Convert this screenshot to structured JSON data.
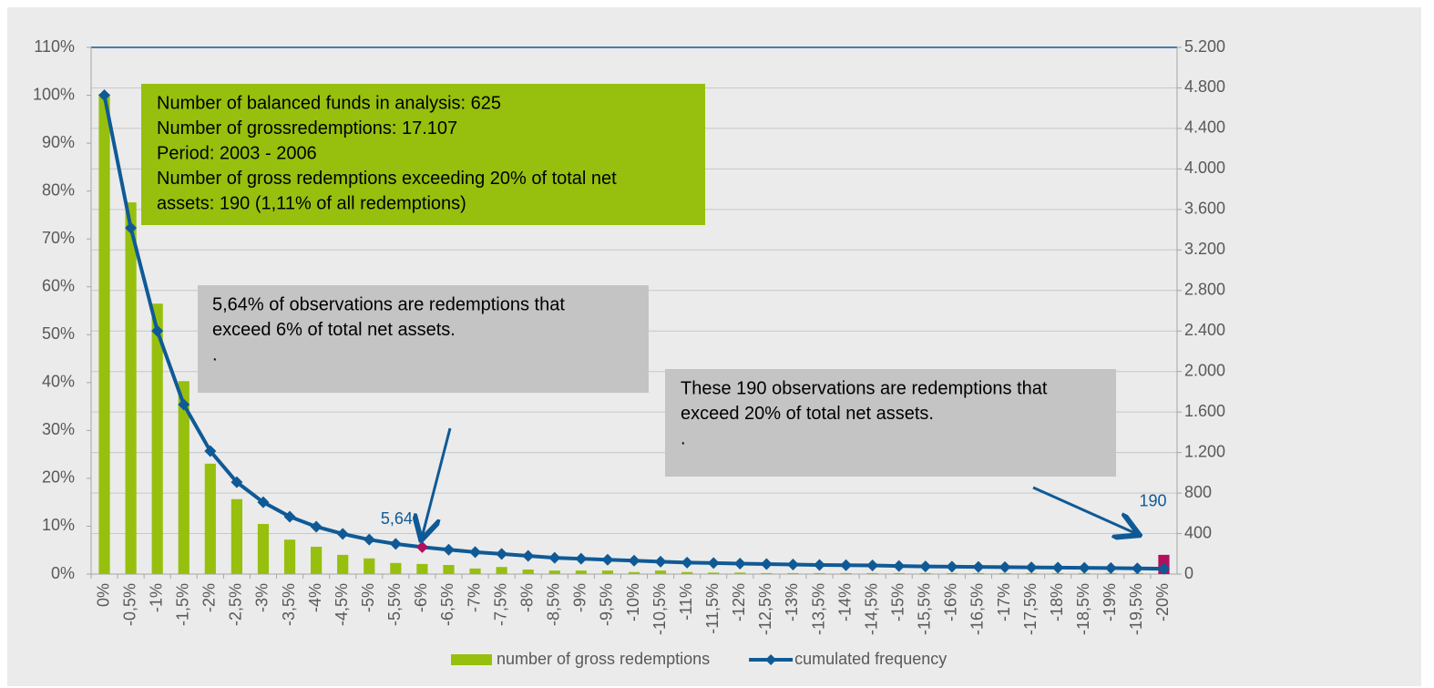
{
  "chart_data": {
    "type": "bar-line",
    "categories": [
      "0%",
      "-0,5%",
      "-1%",
      "-1,5%",
      "-2%",
      "-2,5%",
      "-3%",
      "-3,5%",
      "-4%",
      "-4,5%",
      "-5%",
      "-5,5%",
      "-6%",
      "-6,5%",
      "-7%",
      "-7,5%",
      "-8%",
      "-8,5%",
      "-9%",
      "-9,5%",
      "-10%",
      "-10,5%",
      "-11%",
      "-11,5%",
      "-12%",
      "-12,5%",
      "-13%",
      "-13,5%",
      "-14%",
      "-14,5%",
      "-15%",
      "-15,5%",
      "-16%",
      "-16,5%",
      "-17%",
      "-17,5%",
      "-18%",
      "-18,5%",
      "-19%",
      "-19,5%",
      "-20%"
    ],
    "series": [
      {
        "name": "number of gross redemptions",
        "type": "bar",
        "axis": "y2",
        "color": "#97c00e",
        "colors": [
          "#97c00e",
          "#97c00e",
          "#97c00e",
          "#97c00e",
          "#97c00e",
          "#97c00e",
          "#97c00e",
          "#97c00e",
          "#97c00e",
          "#97c00e",
          "#97c00e",
          "#97c00e",
          "#97c00e",
          "#97c00e",
          "#97c00e",
          "#97c00e",
          "#97c00e",
          "#97c00e",
          "#97c00e",
          "#97c00e",
          "#97c00e",
          "#97c00e",
          "#97c00e",
          "#97c00e",
          "#97c00e",
          "#97c00e",
          "#97c00e",
          "#97c00e",
          "#97c00e",
          "#97c00e",
          "#97c00e",
          "#97c00e",
          "#97c00e",
          "#97c00e",
          "#97c00e",
          "#97c00e",
          "#97c00e",
          "#97c00e",
          "#97c00e",
          "#97c00e",
          "#b0105e"
        ],
        "values": [
          4740,
          3670,
          2670,
          1905,
          1090,
          740,
          495,
          340,
          270,
          190,
          155,
          110,
          100,
          90,
          55,
          70,
          45,
          35,
          35,
          35,
          20,
          35,
          20,
          15,
          15,
          10,
          10,
          10,
          10,
          10,
          10,
          10,
          10,
          10,
          10,
          10,
          10,
          10,
          10,
          10,
          190
        ],
        "value_labels": [
          null,
          null,
          null,
          null,
          null,
          null,
          null,
          null,
          null,
          null,
          null,
          null,
          null,
          null,
          null,
          null,
          null,
          null,
          null,
          null,
          null,
          null,
          null,
          null,
          null,
          null,
          null,
          null,
          null,
          null,
          null,
          null,
          null,
          null,
          null,
          null,
          null,
          null,
          null,
          null,
          "190"
        ]
      },
      {
        "name": "cumulated frequency",
        "type": "line",
        "axis": "y",
        "color": "#0f5a96",
        "colors": [
          "#0f5a96",
          "#0f5a96",
          "#0f5a96",
          "#0f5a96",
          "#0f5a96",
          "#0f5a96",
          "#0f5a96",
          "#0f5a96",
          "#0f5a96",
          "#0f5a96",
          "#0f5a96",
          "#0f5a96",
          "#b0105e",
          "#0f5a96",
          "#0f5a96",
          "#0f5a96",
          "#0f5a96",
          "#0f5a96",
          "#0f5a96",
          "#0f5a96",
          "#0f5a96",
          "#0f5a96",
          "#0f5a96",
          "#0f5a96",
          "#0f5a96",
          "#0f5a96",
          "#0f5a96",
          "#0f5a96",
          "#0f5a96",
          "#0f5a96",
          "#0f5a96",
          "#0f5a96",
          "#0f5a96",
          "#0f5a96",
          "#0f5a96",
          "#0f5a96",
          "#0f5a96",
          "#0f5a96",
          "#0f5a96",
          "#0f5a96",
          "#0f5a96"
        ],
        "values": [
          100,
          72.3,
          50.8,
          35.4,
          25.7,
          19.2,
          15,
          12,
          9.9,
          8.4,
          7.2,
          6.3,
          5.64,
          5.1,
          4.6,
          4.2,
          3.8,
          3.4,
          3.2,
          3,
          2.8,
          2.6,
          2.4,
          2.3,
          2.2,
          2.1,
          2,
          1.9,
          1.85,
          1.8,
          1.7,
          1.6,
          1.55,
          1.5,
          1.45,
          1.4,
          1.35,
          1.3,
          1.25,
          1.2,
          1.11
        ],
        "value_labels": [
          null,
          null,
          null,
          null,
          null,
          null,
          null,
          null,
          null,
          null,
          null,
          null,
          "5,64",
          null,
          null,
          null,
          null,
          null,
          null,
          null,
          null,
          null,
          null,
          null,
          null,
          null,
          null,
          null,
          null,
          null,
          null,
          null,
          null,
          null,
          null,
          null,
          null,
          null,
          null,
          null,
          null
        ]
      }
    ],
    "ylim": [
      0,
      110
    ],
    "yticks": [
      {
        "value": 0,
        "label": "0%"
      },
      {
        "value": 10,
        "label": "10%"
      },
      {
        "value": 20,
        "label": "20%"
      },
      {
        "value": 30,
        "label": "30%"
      },
      {
        "value": 40,
        "label": "40%"
      },
      {
        "value": 50,
        "label": "50%"
      },
      {
        "value": 60,
        "label": "60%"
      },
      {
        "value": 70,
        "label": "70%"
      },
      {
        "value": 80,
        "label": "80%"
      },
      {
        "value": 90,
        "label": "90%"
      },
      {
        "value": 100,
        "label": "100%"
      },
      {
        "value": 110,
        "label": "110%"
      }
    ],
    "y2lim": [
      0,
      5200
    ],
    "y2ticks": [
      0,
      400,
      800,
      {
        "value": 1200,
        "label": "1.200"
      },
      {
        "value": 1600,
        "label": "1.600"
      },
      {
        "value": 2000,
        "label": "2.000"
      },
      {
        "value": 2400,
        "label": "2.400"
      },
      {
        "value": 2800,
        "label": "2.800"
      },
      {
        "value": 3200,
        "label": "3.200"
      },
      {
        "value": 3600,
        "label": "3.600"
      },
      {
        "value": 4000,
        "label": "4.000"
      },
      {
        "value": 4400,
        "label": "4.400"
      },
      {
        "value": 4800,
        "label": "4.800"
      },
      {
        "value": 5200,
        "label": "5.200"
      }
    ],
    "grid": "y2",
    "legend": "bottom",
    "annotations": [
      {
        "color": "#97c00e",
        "lines": [
          "Number of balanced funds in analysis: 625",
          "Number of grossredemptions: 17.107",
          "Period: 2003 - 2006",
          "Number of gross redemptions exceeding  20% of total net",
          "assets: 190 (1,11% of all redemptions)"
        ]
      },
      {
        "color": "#c4c4c4",
        "lines": [
          "5,64% of observations are redemptions that",
          "exceed 6% of total net assets.",
          "."
        ]
      },
      {
        "color": "#c4c4c4",
        "lines": [
          "These 190 observations are redemptions that",
          "exceed 20% of total net assets.",
          "."
        ]
      }
    ]
  }
}
